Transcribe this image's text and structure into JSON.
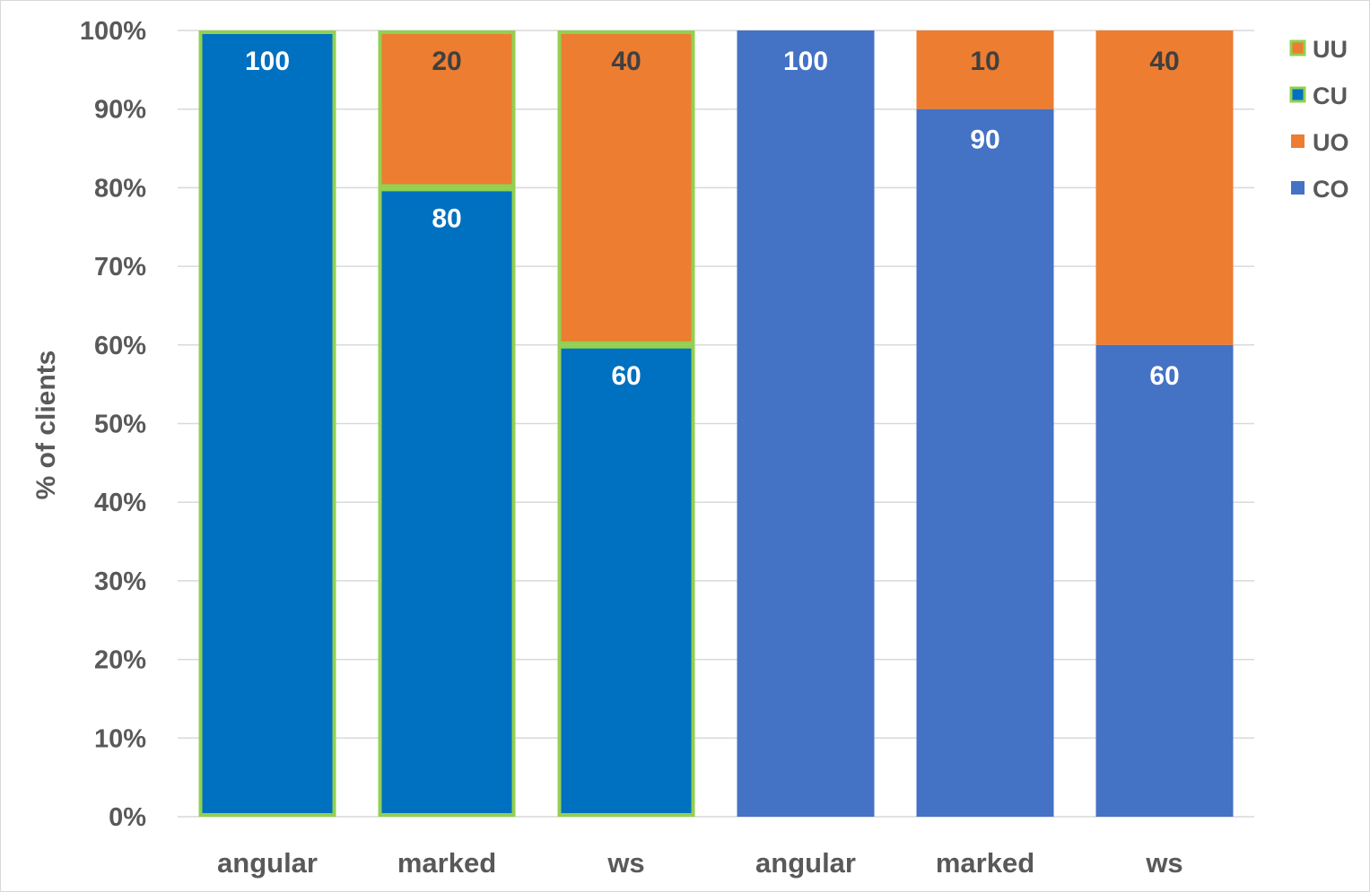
{
  "chart_data": {
    "type": "bar",
    "stacked": "percent",
    "ylabel": "% of clients",
    "ylim": [
      0,
      100
    ],
    "yticks": [
      "0%",
      "10%",
      "20%",
      "30%",
      "40%",
      "50%",
      "60%",
      "70%",
      "80%",
      "90%",
      "100%"
    ],
    "grid": true,
    "legend_position": "right",
    "categories": [
      "angular",
      "marked",
      "ws",
      "angular",
      "marked",
      "ws"
    ],
    "series": [
      {
        "name": "CU",
        "color": "#0070c0",
        "outline": "#92d050",
        "values": [
          100,
          80,
          60,
          null,
          null,
          null
        ]
      },
      {
        "name": "UU",
        "color": "#ed7d31",
        "outline": "#92d050",
        "values": [
          null,
          20,
          40,
          null,
          null,
          null
        ]
      },
      {
        "name": "CO",
        "color": "#4472c4",
        "outline": null,
        "values": [
          null,
          null,
          null,
          100,
          90,
          60
        ]
      },
      {
        "name": "UO",
        "color": "#ed7d31",
        "outline": null,
        "values": [
          null,
          null,
          null,
          null,
          10,
          40
        ]
      }
    ],
    "legend_order": [
      "UU",
      "CU",
      "UO",
      "CO"
    ],
    "data_label_colors": {
      "CU": "#ffffff",
      "CO": "#ffffff",
      "UU": "#404040",
      "UO": "#404040"
    }
  }
}
